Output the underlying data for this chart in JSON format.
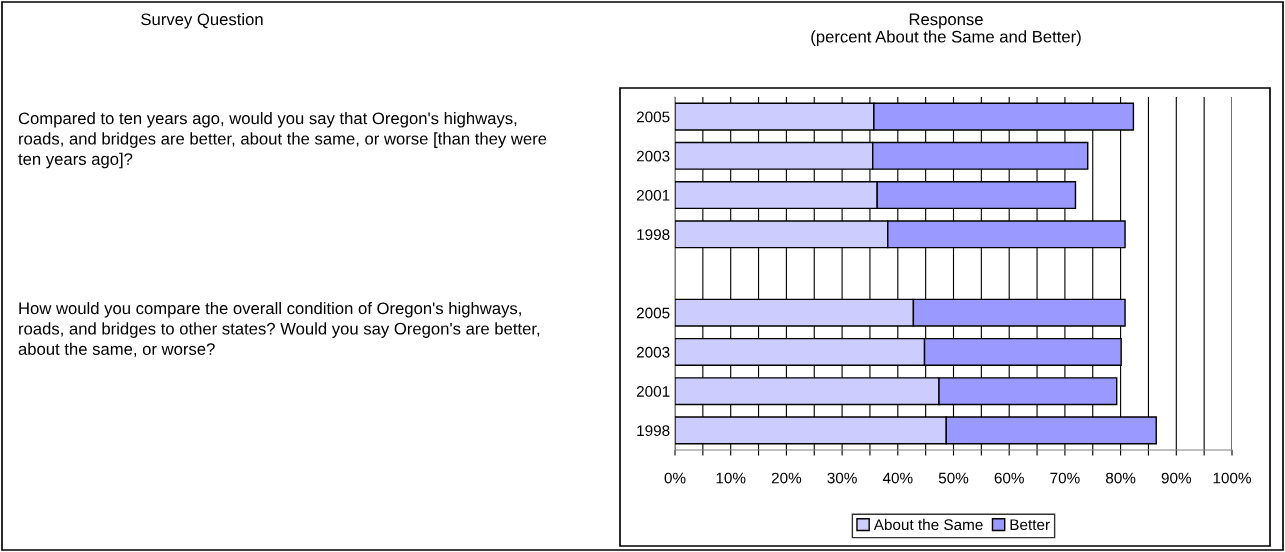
{
  "chart_data": {
    "type": "bar",
    "orientation": "horizontal",
    "stacked": true,
    "title": "Response\n(percent About the Same and Better)",
    "categories": [
      "2005",
      "2003",
      "2001",
      "1998",
      null,
      "2005",
      "2003",
      "2001",
      "1998"
    ],
    "series": [
      {
        "name": "About the Same",
        "color": "#ccccff",
        "values": [
          35.7,
          35.5,
          36.3,
          38.2,
          null,
          42.8,
          44.8,
          47.4,
          48.7
        ]
      },
      {
        "name": "Better",
        "color": "#9999ff",
        "values": [
          46.6,
          38.6,
          35.6,
          42.6,
          null,
          38.0,
          35.3,
          31.9,
          37.7
        ]
      }
    ],
    "xlim": [
      0,
      100
    ],
    "xticks": [
      {
        "value": 0,
        "label": "0%"
      },
      {
        "value": 5,
        "label": null
      },
      {
        "value": 10,
        "label": "10%"
      },
      {
        "value": 15,
        "label": null
      },
      {
        "value": 20,
        "label": "20%"
      },
      {
        "value": 25,
        "label": null
      },
      {
        "value": 30,
        "label": "30%"
      },
      {
        "value": 35,
        "label": null
      },
      {
        "value": 40,
        "label": "40%"
      },
      {
        "value": 45,
        "label": null
      },
      {
        "value": 50,
        "label": "50%"
      },
      {
        "value": 55,
        "label": null
      },
      {
        "value": 60,
        "label": "60%"
      },
      {
        "value": 65,
        "label": null
      },
      {
        "value": 70,
        "label": "70%"
      },
      {
        "value": 75,
        "label": null
      },
      {
        "value": 80,
        "label": "80%"
      },
      {
        "value": 85,
        "label": null
      },
      {
        "value": 90,
        "label": "90%"
      },
      {
        "value": 95,
        "label": null
      },
      {
        "value": 100,
        "label": "100%"
      }
    ],
    "grid": "x",
    "legend": "bottom",
    "annotations": [
      "Survey Question",
      "Compared to ten years ago, would you say that Oregon's highways, roads, and bridges are better, about the same, or worse [than they were ten years ago]?",
      "How would you compare the overall condition of Oregon's highways, roads, and bridges to other states? Would you say Oregon's are better, about the same, or worse?"
    ]
  }
}
